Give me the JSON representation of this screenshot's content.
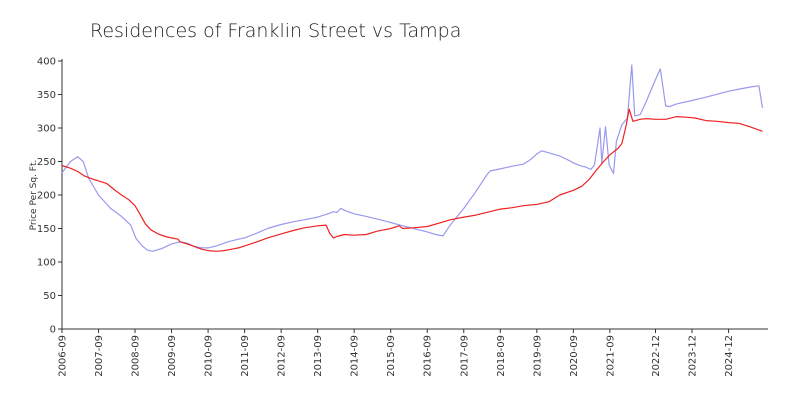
{
  "chart_data": {
    "type": "line",
    "title": "Residences of Franklin Street vs Tampa",
    "xlabel": "",
    "ylabel": "Price Per Sq. Ft.",
    "ylim": [
      0,
      400
    ],
    "xlim": [
      2006.67,
      2026.0
    ],
    "yticks": [
      0,
      50,
      100,
      150,
      200,
      250,
      300,
      350,
      400
    ],
    "xticks": [
      {
        "label": "2006-09",
        "t": 2006.67
      },
      {
        "label": "2007-09",
        "t": 2007.67
      },
      {
        "label": "2008-09",
        "t": 2008.67
      },
      {
        "label": "2009-09",
        "t": 2009.67
      },
      {
        "label": "2010-09",
        "t": 2010.67
      },
      {
        "label": "2011-09",
        "t": 2011.67
      },
      {
        "label": "2012-09",
        "t": 2012.67
      },
      {
        "label": "2013-09",
        "t": 2013.67
      },
      {
        "label": "2014-09",
        "t": 2014.67
      },
      {
        "label": "2015-09",
        "t": 2015.67
      },
      {
        "label": "2016-09",
        "t": 2016.67
      },
      {
        "label": "2017-09",
        "t": 2017.67
      },
      {
        "label": "2018-09",
        "t": 2018.67
      },
      {
        "label": "2019-09",
        "t": 2019.67
      },
      {
        "label": "2020-09",
        "t": 2020.67
      },
      {
        "label": "2021-09",
        "t": 2021.67
      },
      {
        "label": "2022-12",
        "t": 2022.92
      },
      {
        "label": "2023-12",
        "t": 2023.92
      },
      {
        "label": "2024-12",
        "t": 2024.92
      }
    ],
    "series": [
      {
        "name": "Franklin Street",
        "color": "#9999ee",
        "points": [
          [
            2006.67,
            233
          ],
          [
            2006.9,
            250
          ],
          [
            2007.1,
            257
          ],
          [
            2007.25,
            250
          ],
          [
            2007.4,
            225
          ],
          [
            2007.67,
            200
          ],
          [
            2008.0,
            180
          ],
          [
            2008.3,
            168
          ],
          [
            2008.55,
            155
          ],
          [
            2008.7,
            135
          ],
          [
            2008.85,
            125
          ],
          [
            2009.0,
            118
          ],
          [
            2009.15,
            116
          ],
          [
            2009.4,
            120
          ],
          [
            2009.67,
            127
          ],
          [
            2009.9,
            130
          ],
          [
            2010.1,
            128
          ],
          [
            2010.3,
            123
          ],
          [
            2010.5,
            121
          ],
          [
            2010.67,
            121
          ],
          [
            2010.9,
            124
          ],
          [
            2011.2,
            130
          ],
          [
            2011.5,
            134
          ],
          [
            2011.67,
            136
          ],
          [
            2012.0,
            143
          ],
          [
            2012.3,
            150
          ],
          [
            2012.67,
            156
          ],
          [
            2013.0,
            160
          ],
          [
            2013.3,
            163
          ],
          [
            2013.67,
            167
          ],
          [
            2013.9,
            171
          ],
          [
            2014.1,
            175
          ],
          [
            2014.2,
            174
          ],
          [
            2014.3,
            180
          ],
          [
            2014.45,
            176
          ],
          [
            2014.67,
            172
          ],
          [
            2015.0,
            168
          ],
          [
            2015.3,
            164
          ],
          [
            2015.67,
            159
          ],
          [
            2016.0,
            154
          ],
          [
            2016.3,
            150
          ],
          [
            2016.67,
            145
          ],
          [
            2016.9,
            141
          ],
          [
            2017.1,
            139
          ],
          [
            2017.3,
            155
          ],
          [
            2017.67,
            180
          ],
          [
            2018.0,
            205
          ],
          [
            2018.3,
            230
          ],
          [
            2018.4,
            236
          ],
          [
            2018.67,
            239
          ],
          [
            2019.0,
            243
          ],
          [
            2019.3,
            246
          ],
          [
            2019.5,
            253
          ],
          [
            2019.67,
            261
          ],
          [
            2019.8,
            266
          ],
          [
            2020.0,
            263
          ],
          [
            2020.3,
            258
          ],
          [
            2020.5,
            253
          ],
          [
            2020.67,
            248
          ],
          [
            2020.9,
            243
          ],
          [
            2021.0,
            242
          ],
          [
            2021.15,
            238
          ],
          [
            2021.25,
            245
          ],
          [
            2021.4,
            300
          ],
          [
            2021.45,
            248
          ],
          [
            2021.55,
            302
          ],
          [
            2021.65,
            245
          ],
          [
            2021.77,
            232
          ],
          [
            2021.85,
            280
          ],
          [
            2022.0,
            305
          ],
          [
            2022.15,
            315
          ],
          [
            2022.27,
            394
          ],
          [
            2022.35,
            318
          ],
          [
            2022.5,
            320
          ],
          [
            2022.67,
            340
          ],
          [
            2022.9,
            370
          ],
          [
            2023.05,
            388
          ],
          [
            2023.2,
            333
          ],
          [
            2023.3,
            332
          ],
          [
            2023.5,
            336
          ],
          [
            2023.92,
            341
          ],
          [
            2024.3,
            346
          ],
          [
            2024.92,
            355
          ],
          [
            2025.3,
            359
          ],
          [
            2025.6,
            362
          ],
          [
            2025.75,
            363
          ],
          [
            2025.85,
            330
          ]
        ]
      },
      {
        "name": "Tampa",
        "color": "#ee2222",
        "points": [
          [
            2006.67,
            244
          ],
          [
            2006.9,
            240
          ],
          [
            2007.1,
            235
          ],
          [
            2007.3,
            228
          ],
          [
            2007.5,
            224
          ],
          [
            2007.67,
            221
          ],
          [
            2007.9,
            217
          ],
          [
            2008.1,
            208
          ],
          [
            2008.3,
            200
          ],
          [
            2008.5,
            193
          ],
          [
            2008.67,
            184
          ],
          [
            2008.8,
            172
          ],
          [
            2008.95,
            157
          ],
          [
            2009.1,
            148
          ],
          [
            2009.3,
            142
          ],
          [
            2009.5,
            138
          ],
          [
            2009.67,
            136
          ],
          [
            2009.85,
            134
          ],
          [
            2009.9,
            130
          ],
          [
            2010.1,
            127
          ],
          [
            2010.3,
            123
          ],
          [
            2010.5,
            119
          ],
          [
            2010.67,
            117
          ],
          [
            2010.9,
            116
          ],
          [
            2011.1,
            117
          ],
          [
            2011.3,
            119
          ],
          [
            2011.5,
            121
          ],
          [
            2011.67,
            124
          ],
          [
            2012.0,
            130
          ],
          [
            2012.3,
            136
          ],
          [
            2012.67,
            142
          ],
          [
            2013.0,
            147
          ],
          [
            2013.3,
            151
          ],
          [
            2013.67,
            154
          ],
          [
            2013.9,
            155
          ],
          [
            2014.0,
            143
          ],
          [
            2014.1,
            136
          ],
          [
            2014.2,
            138
          ],
          [
            2014.4,
            141
          ],
          [
            2014.67,
            140
          ],
          [
            2015.0,
            141
          ],
          [
            2015.3,
            146
          ],
          [
            2015.67,
            150
          ],
          [
            2015.9,
            154
          ],
          [
            2016.0,
            150
          ],
          [
            2016.3,
            151
          ],
          [
            2016.67,
            153
          ],
          [
            2017.0,
            158
          ],
          [
            2017.3,
            163
          ],
          [
            2017.67,
            167
          ],
          [
            2018.0,
            170
          ],
          [
            2018.3,
            174
          ],
          [
            2018.67,
            179
          ],
          [
            2019.0,
            181
          ],
          [
            2019.3,
            184
          ],
          [
            2019.67,
            186
          ],
          [
            2020.0,
            190
          ],
          [
            2020.3,
            200
          ],
          [
            2020.67,
            207
          ],
          [
            2020.9,
            213
          ],
          [
            2021.1,
            223
          ],
          [
            2021.3,
            237
          ],
          [
            2021.5,
            250
          ],
          [
            2021.67,
            260
          ],
          [
            2021.9,
            270
          ],
          [
            2022.0,
            277
          ],
          [
            2022.1,
            300
          ],
          [
            2022.2,
            328
          ],
          [
            2022.3,
            310
          ],
          [
            2022.5,
            313
          ],
          [
            2022.67,
            314
          ],
          [
            2022.92,
            313
          ],
          [
            2023.2,
            313
          ],
          [
            2023.5,
            317
          ],
          [
            2023.8,
            316
          ],
          [
            2024.0,
            315
          ],
          [
            2024.3,
            311
          ],
          [
            2024.6,
            310
          ],
          [
            2024.92,
            308
          ],
          [
            2025.2,
            307
          ],
          [
            2025.5,
            302
          ],
          [
            2025.85,
            295
          ]
        ]
      }
    ]
  }
}
